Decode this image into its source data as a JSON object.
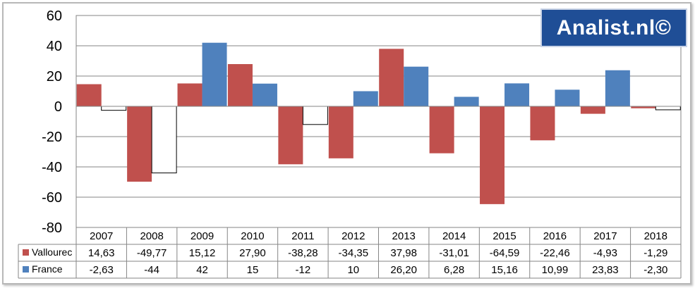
{
  "chart_data": {
    "type": "bar",
    "title": "",
    "xlabel": "",
    "ylabel": "",
    "ylim": [
      -80,
      60
    ],
    "yticks": [
      60,
      40,
      20,
      0,
      -20,
      -40,
      -60,
      -80
    ],
    "grid": true,
    "legend": "table-left",
    "categories": [
      "2007",
      "2008",
      "2009",
      "2010",
      "2011",
      "2012",
      "2013",
      "2014",
      "2015",
      "2016",
      "2017",
      "2018"
    ],
    "series": [
      {
        "name": "Vallourec",
        "color": "#c0504d",
        "values": [
          14.63,
          -49.77,
          15.12,
          27.9,
          -38.28,
          -34.35,
          37.98,
          -31.01,
          -64.59,
          -22.46,
          -4.93,
          -1.29
        ],
        "labels": [
          "14,63",
          "-49,77",
          "15,12",
          "27,90",
          "-38,28",
          "-34,35",
          "37,98",
          "-31,01",
          "-64,59",
          "-22,46",
          "-4,93",
          "-1,29"
        ]
      },
      {
        "name": "France",
        "color": "#4f81bd",
        "negative_color": "#ffffff",
        "values": [
          -2.63,
          -44,
          42,
          15,
          -12,
          10,
          26.2,
          6.28,
          15.16,
          10.99,
          23.83,
          -2.3
        ],
        "labels": [
          "-2,63",
          "-44",
          "42",
          "15",
          "-12",
          "10",
          "26,20",
          "6,28",
          "15,16",
          "10,99",
          "23,83",
          "-2,30"
        ]
      }
    ]
  },
  "watermark": "Analist.nl©"
}
